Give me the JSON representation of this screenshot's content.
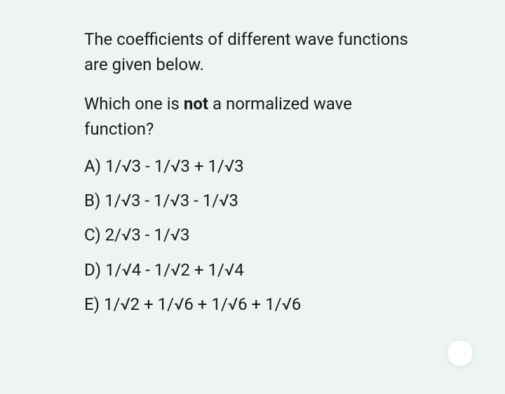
{
  "question": {
    "line1": "The coefficients of different wave functions are given below.",
    "line2_pre": "Which one is ",
    "line2_bold": "not",
    "line2_post": " a normalized wave function?"
  },
  "options": {
    "A": "A) 1/√3 - 1/√3 + 1/√3",
    "B": "B) 1/√3 - 1/√3 - 1/√3",
    "C": "C) 2/√3 - 1/√3",
    "D": "D) 1/√4 - 1/√2 + 1/√4",
    "E": "E) 1/√2 + 1/√6 + 1/√6 + 1/√6"
  },
  "styling": {
    "background_color": "#eef3f3",
    "text_color": "#1a1a1a",
    "font_size": 24,
    "bubble_color": "#ffffff"
  }
}
